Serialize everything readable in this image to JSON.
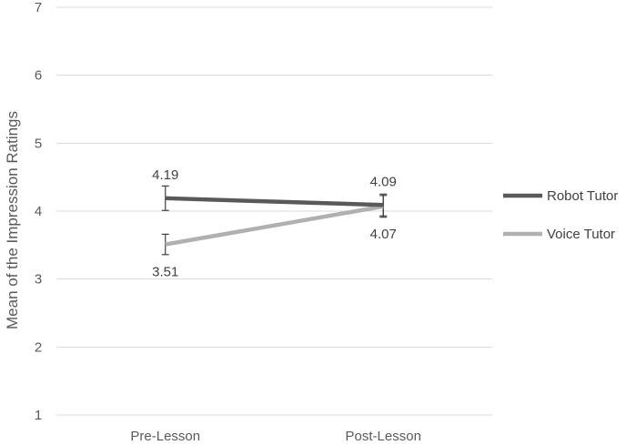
{
  "chart_data": {
    "type": "line",
    "title": "",
    "xlabel": "",
    "ylabel": "Mean of the Impression Ratings",
    "ylim": [
      1,
      7
    ],
    "yticks": [
      1,
      2,
      3,
      4,
      5,
      6,
      7
    ],
    "grid": true,
    "legend_position": "right",
    "categories": [
      "Pre-Lesson",
      "Post-Lesson"
    ],
    "series": [
      {
        "name": "Robot Tutor",
        "color": "#595959",
        "values": [
          4.19,
          4.09
        ],
        "labels": [
          "4.19",
          "4.09"
        ],
        "error": [
          0.18,
          0.16
        ]
      },
      {
        "name": "Voice Tutor",
        "color": "#b0b0b0",
        "values": [
          3.51,
          4.07
        ],
        "labels": [
          "3.51",
          "4.07"
        ],
        "error": [
          0.15,
          0.16
        ]
      }
    ]
  }
}
